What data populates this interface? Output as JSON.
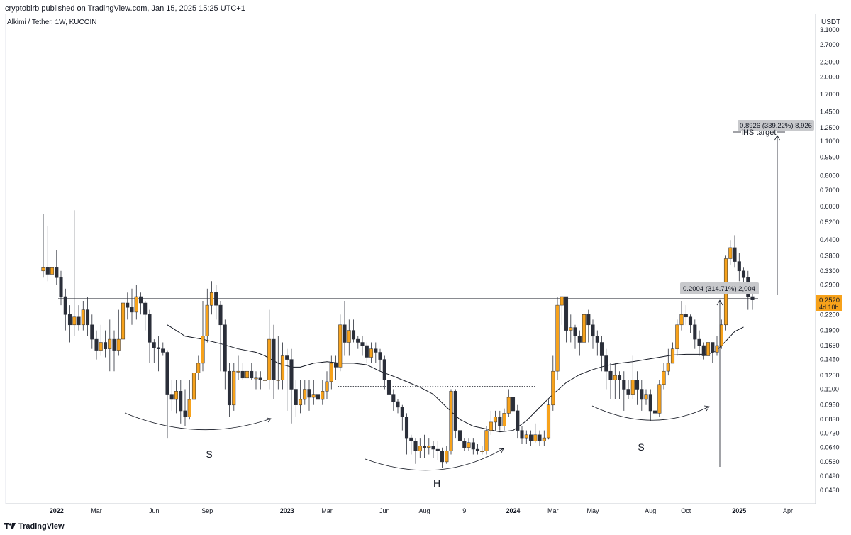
{
  "header": {
    "publish_line": "cryptobirb published on TradingView.com, Jan 15, 2025 15:25 UTC+1",
    "symbol_line": "Alkimi / Tether, 1W, KUCOIN",
    "currency": "USDT"
  },
  "footer": {
    "logo_text": "TradingView"
  },
  "colors": {
    "up": "#f7a21b",
    "down": "#2a2e39",
    "line": "#131722",
    "price_tag": "#f7a21b",
    "badge": "#c8c9cc"
  },
  "chart_data": {
    "type": "candlestick",
    "y_scale": "log",
    "ylim": [
      0.043,
      3.1
    ],
    "y_ticks": [
      {
        "v": 3.1,
        "label": "3.1000"
      },
      {
        "v": 2.7,
        "label": "2.7000"
      },
      {
        "v": 2.3,
        "label": "2.3000"
      },
      {
        "v": 2.0,
        "label": "2.0000"
      },
      {
        "v": 1.7,
        "label": "1.7000"
      },
      {
        "v": 1.45,
        "label": "1.4500"
      },
      {
        "v": 1.25,
        "label": "1.2500"
      },
      {
        "v": 1.1,
        "label": "1.1000"
      },
      {
        "v": 0.95,
        "label": "0.9500"
      },
      {
        "v": 0.8,
        "label": "0.8000"
      },
      {
        "v": 0.7,
        "label": "0.7000"
      },
      {
        "v": 0.6,
        "label": "0.6000"
      },
      {
        "v": 0.52,
        "label": "0.5200"
      },
      {
        "v": 0.44,
        "label": "0.4400"
      },
      {
        "v": 0.38,
        "label": "0.3800"
      },
      {
        "v": 0.33,
        "label": "0.3300"
      },
      {
        "v": 0.29,
        "label": "0.2900"
      },
      {
        "v": 0.22,
        "label": "0.2200"
      },
      {
        "v": 0.19,
        "label": "0.1900"
      },
      {
        "v": 0.165,
        "label": "0.1650"
      },
      {
        "v": 0.145,
        "label": "0.1450"
      },
      {
        "v": 0.125,
        "label": "0.1250"
      },
      {
        "v": 0.11,
        "label": "0.1100"
      },
      {
        "v": 0.095,
        "label": "0.0950"
      },
      {
        "v": 0.083,
        "label": "0.0830"
      },
      {
        "v": 0.073,
        "label": "0.0730"
      },
      {
        "v": 0.064,
        "label": "0.0640"
      },
      {
        "v": 0.056,
        "label": "0.0560"
      },
      {
        "v": 0.049,
        "label": "0.0490"
      },
      {
        "v": 0.043,
        "label": "0.0430"
      }
    ],
    "x_ticks": [
      {
        "week": 3,
        "label": "2022",
        "bold": true
      },
      {
        "week": 12,
        "label": "Mar"
      },
      {
        "week": 25,
        "label": "Jun"
      },
      {
        "week": 37,
        "label": "Sep"
      },
      {
        "week": 55,
        "label": "2023",
        "bold": true
      },
      {
        "week": 64,
        "label": "Mar"
      },
      {
        "week": 77,
        "label": "Jun"
      },
      {
        "week": 86,
        "label": "Aug"
      },
      {
        "week": 95,
        "label": "9"
      },
      {
        "week": 106,
        "label": "2024",
        "bold": true
      },
      {
        "week": 115,
        "label": "Mar"
      },
      {
        "week": 124,
        "label": "May"
      },
      {
        "week": 137,
        "label": "Aug"
      },
      {
        "week": 145,
        "label": "Oct"
      },
      {
        "week": 157,
        "label": "2025",
        "bold": true
      },
      {
        "week": 168,
        "label": "Apr"
      }
    ],
    "candles": [
      [
        0.33,
        0.34,
        0.56,
        0.31
      ],
      [
        0.34,
        0.32,
        0.5,
        0.3
      ],
      [
        0.32,
        0.34,
        0.5,
        0.3
      ],
      [
        0.34,
        0.31,
        0.4,
        0.29
      ],
      [
        0.31,
        0.26,
        0.33,
        0.24
      ],
      [
        0.26,
        0.22,
        0.28,
        0.19
      ],
      [
        0.22,
        0.2,
        0.24,
        0.17
      ],
      [
        0.2,
        0.215,
        0.58,
        0.18
      ],
      [
        0.215,
        0.2,
        0.24,
        0.19
      ],
      [
        0.2,
        0.23,
        0.25,
        0.19
      ],
      [
        0.23,
        0.2,
        0.26,
        0.18
      ],
      [
        0.2,
        0.175,
        0.22,
        0.16
      ],
      [
        0.175,
        0.158,
        0.19,
        0.145
      ],
      [
        0.158,
        0.17,
        0.2,
        0.15
      ],
      [
        0.17,
        0.16,
        0.19,
        0.148
      ],
      [
        0.16,
        0.175,
        0.21,
        0.13
      ],
      [
        0.175,
        0.158,
        0.19,
        0.13
      ],
      [
        0.158,
        0.175,
        0.23,
        0.15
      ],
      [
        0.175,
        0.245,
        0.29,
        0.17
      ],
      [
        0.245,
        0.235,
        0.27,
        0.21
      ],
      [
        0.235,
        0.225,
        0.28,
        0.2
      ],
      [
        0.225,
        0.26,
        0.29,
        0.21
      ],
      [
        0.26,
        0.245,
        0.27,
        0.22
      ],
      [
        0.245,
        0.22,
        0.25,
        0.19
      ],
      [
        0.22,
        0.17,
        0.23,
        0.14
      ],
      [
        0.17,
        0.162,
        0.175,
        0.14
      ],
      [
        0.162,
        0.16,
        0.18,
        0.13
      ],
      [
        0.16,
        0.155,
        0.17,
        0.15
      ],
      [
        0.155,
        0.105,
        0.158,
        0.07
      ],
      [
        0.105,
        0.1,
        0.12,
        0.09
      ],
      [
        0.1,
        0.108,
        0.12,
        0.088
      ],
      [
        0.108,
        0.09,
        0.12,
        0.08
      ],
      [
        0.09,
        0.085,
        0.11,
        0.078
      ],
      [
        0.085,
        0.1,
        0.12,
        0.083
      ],
      [
        0.1,
        0.128,
        0.14,
        0.098
      ],
      [
        0.128,
        0.14,
        0.15,
        0.12
      ],
      [
        0.14,
        0.18,
        0.25,
        0.13
      ],
      [
        0.18,
        0.24,
        0.28,
        0.17
      ],
      [
        0.24,
        0.27,
        0.3,
        0.22
      ],
      [
        0.27,
        0.24,
        0.29,
        0.21
      ],
      [
        0.24,
        0.2,
        0.25,
        0.13
      ],
      [
        0.2,
        0.13,
        0.21,
        0.11
      ],
      [
        0.13,
        0.095,
        0.14,
        0.085
      ],
      [
        0.095,
        0.13,
        0.14,
        0.09
      ],
      [
        0.13,
        0.13,
        0.15,
        0.12
      ],
      [
        0.13,
        0.122,
        0.14,
        0.12
      ],
      [
        0.122,
        0.13,
        0.14,
        0.11
      ],
      [
        0.13,
        0.122,
        0.14,
        0.12
      ],
      [
        0.122,
        0.122,
        0.13,
        0.11
      ],
      [
        0.122,
        0.12,
        0.13,
        0.11
      ],
      [
        0.12,
        0.12,
        0.14,
        0.11
      ],
      [
        0.12,
        0.175,
        0.23,
        0.11
      ],
      [
        0.175,
        0.12,
        0.2,
        0.1
      ],
      [
        0.12,
        0.12,
        0.18,
        0.11
      ],
      [
        0.12,
        0.15,
        0.17,
        0.11
      ],
      [
        0.15,
        0.145,
        0.16,
        0.09
      ],
      [
        0.145,
        0.11,
        0.16,
        0.08
      ],
      [
        0.11,
        0.095,
        0.12,
        0.085
      ],
      [
        0.095,
        0.1,
        0.12,
        0.088
      ],
      [
        0.1,
        0.11,
        0.12,
        0.095
      ],
      [
        0.11,
        0.102,
        0.12,
        0.09
      ],
      [
        0.102,
        0.105,
        0.12,
        0.095
      ],
      [
        0.105,
        0.1,
        0.12,
        0.09
      ],
      [
        0.1,
        0.108,
        0.12,
        0.095
      ],
      [
        0.108,
        0.118,
        0.13,
        0.1
      ],
      [
        0.118,
        0.14,
        0.15,
        0.11
      ],
      [
        0.14,
        0.135,
        0.15,
        0.12
      ],
      [
        0.135,
        0.2,
        0.22,
        0.13
      ],
      [
        0.2,
        0.17,
        0.25,
        0.15
      ],
      [
        0.17,
        0.19,
        0.21,
        0.15
      ],
      [
        0.19,
        0.175,
        0.21,
        0.17
      ],
      [
        0.175,
        0.17,
        0.18,
        0.16
      ],
      [
        0.17,
        0.165,
        0.18,
        0.15
      ],
      [
        0.165,
        0.148,
        0.17,
        0.14
      ],
      [
        0.148,
        0.16,
        0.17,
        0.14
      ],
      [
        0.16,
        0.155,
        0.17,
        0.14
      ],
      [
        0.155,
        0.145,
        0.16,
        0.13
      ],
      [
        0.145,
        0.12,
        0.15,
        0.11
      ],
      [
        0.12,
        0.105,
        0.13,
        0.1
      ],
      [
        0.105,
        0.098,
        0.11,
        0.09
      ],
      [
        0.098,
        0.093,
        0.1,
        0.088
      ],
      [
        0.093,
        0.085,
        0.095,
        0.075
      ],
      [
        0.085,
        0.07,
        0.088,
        0.06
      ],
      [
        0.07,
        0.068,
        0.072,
        0.06
      ],
      [
        0.068,
        0.062,
        0.07,
        0.055
      ],
      [
        0.062,
        0.065,
        0.07,
        0.058
      ],
      [
        0.065,
        0.064,
        0.072,
        0.058
      ],
      [
        0.064,
        0.065,
        0.07,
        0.06
      ],
      [
        0.065,
        0.063,
        0.068,
        0.058
      ],
      [
        0.063,
        0.062,
        0.068,
        0.057
      ],
      [
        0.062,
        0.056,
        0.064,
        0.053
      ],
      [
        0.056,
        0.062,
        0.065,
        0.055
      ],
      [
        0.062,
        0.108,
        0.11,
        0.06
      ],
      [
        0.108,
        0.075,
        0.11,
        0.07
      ],
      [
        0.075,
        0.068,
        0.08,
        0.065
      ],
      [
        0.068,
        0.064,
        0.07,
        0.062
      ],
      [
        0.064,
        0.067,
        0.07,
        0.062
      ],
      [
        0.067,
        0.063,
        0.07,
        0.06
      ],
      [
        0.063,
        0.062,
        0.066,
        0.06
      ],
      [
        0.062,
        0.062,
        0.065,
        0.06
      ],
      [
        0.062,
        0.075,
        0.078,
        0.06
      ],
      [
        0.075,
        0.081,
        0.09,
        0.072
      ],
      [
        0.081,
        0.085,
        0.09,
        0.075
      ],
      [
        0.085,
        0.078,
        0.09,
        0.075
      ],
      [
        0.078,
        0.088,
        0.092,
        0.075
      ],
      [
        0.088,
        0.102,
        0.11,
        0.085
      ],
      [
        0.102,
        0.09,
        0.11,
        0.082
      ],
      [
        0.09,
        0.075,
        0.095,
        0.07
      ],
      [
        0.075,
        0.07,
        0.078,
        0.066
      ],
      [
        0.07,
        0.072,
        0.075,
        0.066
      ],
      [
        0.072,
        0.068,
        0.075,
        0.065
      ],
      [
        0.068,
        0.072,
        0.08,
        0.067
      ],
      [
        0.072,
        0.068,
        0.075,
        0.065
      ],
      [
        0.068,
        0.07,
        0.075,
        0.065
      ],
      [
        0.07,
        0.095,
        0.1,
        0.069
      ],
      [
        0.095,
        0.13,
        0.15,
        0.09
      ],
      [
        0.13,
        0.24,
        0.26,
        0.12
      ],
      [
        0.24,
        0.26,
        0.26,
        0.2
      ],
      [
        0.26,
        0.19,
        0.26,
        0.17
      ],
      [
        0.19,
        0.195,
        0.22,
        0.17
      ],
      [
        0.195,
        0.18,
        0.2,
        0.16
      ],
      [
        0.18,
        0.17,
        0.19,
        0.15
      ],
      [
        0.17,
        0.22,
        0.25,
        0.16
      ],
      [
        0.22,
        0.2,
        0.23,
        0.17
      ],
      [
        0.2,
        0.18,
        0.21,
        0.16
      ],
      [
        0.18,
        0.17,
        0.19,
        0.15
      ],
      [
        0.17,
        0.15,
        0.18,
        0.13
      ],
      [
        0.15,
        0.13,
        0.16,
        0.11
      ],
      [
        0.13,
        0.12,
        0.14,
        0.1
      ],
      [
        0.12,
        0.125,
        0.14,
        0.1
      ],
      [
        0.125,
        0.12,
        0.13,
        0.1
      ],
      [
        0.12,
        0.11,
        0.13,
        0.09
      ],
      [
        0.11,
        0.105,
        0.12,
        0.1
      ],
      [
        0.105,
        0.12,
        0.15,
        0.1
      ],
      [
        0.12,
        0.11,
        0.13,
        0.095
      ],
      [
        0.11,
        0.1,
        0.12,
        0.09
      ],
      [
        0.1,
        0.105,
        0.11,
        0.095
      ],
      [
        0.105,
        0.09,
        0.11,
        0.082
      ],
      [
        0.09,
        0.088,
        0.1,
        0.075
      ],
      [
        0.088,
        0.115,
        0.12,
        0.085
      ],
      [
        0.115,
        0.13,
        0.14,
        0.11
      ],
      [
        0.13,
        0.14,
        0.16,
        0.125
      ],
      [
        0.14,
        0.16,
        0.17,
        0.14
      ],
      [
        0.16,
        0.2,
        0.21,
        0.15
      ],
      [
        0.2,
        0.22,
        0.25,
        0.19
      ],
      [
        0.22,
        0.215,
        0.24,
        0.2
      ],
      [
        0.215,
        0.2,
        0.22,
        0.185
      ],
      [
        0.2,
        0.175,
        0.21,
        0.16
      ],
      [
        0.175,
        0.165,
        0.19,
        0.15
      ],
      [
        0.165,
        0.15,
        0.17,
        0.145
      ],
      [
        0.15,
        0.17,
        0.18,
        0.145
      ],
      [
        0.17,
        0.155,
        0.17,
        0.14
      ],
      [
        0.155,
        0.165,
        0.18,
        0.15
      ],
      [
        0.165,
        0.2,
        0.21,
        0.16
      ],
      [
        0.2,
        0.37,
        0.38,
        0.19
      ],
      [
        0.37,
        0.41,
        0.44,
        0.35
      ],
      [
        0.41,
        0.36,
        0.46,
        0.34
      ],
      [
        0.36,
        0.33,
        0.39,
        0.3
      ],
      [
        0.33,
        0.31,
        0.34,
        0.29
      ],
      [
        0.31,
        0.26,
        0.33,
        0.23
      ],
      [
        0.26,
        0.252,
        0.27,
        0.23
      ]
    ],
    "ma_line": [
      [
        28,
        0.2
      ],
      [
        32,
        0.18
      ],
      [
        36,
        0.175
      ],
      [
        40,
        0.168
      ],
      [
        44,
        0.16
      ],
      [
        48,
        0.155
      ],
      [
        50,
        0.15
      ],
      [
        53,
        0.14
      ],
      [
        56,
        0.135
      ],
      [
        58,
        0.135
      ],
      [
        61,
        0.14
      ],
      [
        64,
        0.142
      ],
      [
        67,
        0.14
      ],
      [
        70,
        0.14
      ],
      [
        73,
        0.138
      ],
      [
        76,
        0.13
      ],
      [
        79,
        0.124
      ],
      [
        82,
        0.118
      ],
      [
        85,
        0.112
      ],
      [
        88,
        0.105
      ],
      [
        91,
        0.093
      ],
      [
        94,
        0.083
      ],
      [
        97,
        0.078
      ],
      [
        100,
        0.076
      ],
      [
        103,
        0.074
      ],
      [
        106,
        0.075
      ],
      [
        109,
        0.082
      ],
      [
        112,
        0.093
      ],
      [
        115,
        0.105
      ],
      [
        118,
        0.117
      ],
      [
        121,
        0.126
      ],
      [
        124,
        0.132
      ],
      [
        127,
        0.137
      ],
      [
        130,
        0.14
      ],
      [
        133,
        0.142
      ],
      [
        136,
        0.145
      ],
      [
        139,
        0.148
      ],
      [
        142,
        0.151
      ],
      [
        145,
        0.152
      ],
      [
        148,
        0.152
      ],
      [
        150,
        0.152
      ],
      [
        152,
        0.158
      ],
      [
        154,
        0.172
      ],
      [
        156,
        0.188
      ],
      [
        158,
        0.196
      ]
    ],
    "neckline": 0.255,
    "head_level": 0.113,
    "annotations": {
      "measure_1": "0.2004 (314.71%) 2,004",
      "measure_2": "0.8926 (339.22%) 8,926",
      "target_label": "iHS target",
      "pattern_s1": "S",
      "pattern_h": "H",
      "pattern_s2": "S"
    },
    "last_price": {
      "value": "0.2520",
      "countdown": "4d 10h"
    }
  }
}
